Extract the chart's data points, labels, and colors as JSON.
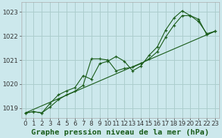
{
  "title": "Graphe pression niveau de la mer (hPa)",
  "bg_color": "#cce8ec",
  "grid_color": "#aacccc",
  "line_color": "#1a5c1a",
  "xlim": [
    -0.5,
    23.5
  ],
  "ylim": [
    1018.6,
    1023.4
  ],
  "yticks": [
    1019,
    1020,
    1021,
    1022,
    1023
  ],
  "xticks": [
    0,
    1,
    2,
    3,
    4,
    5,
    6,
    7,
    8,
    9,
    10,
    11,
    12,
    13,
    14,
    15,
    16,
    17,
    18,
    19,
    20,
    21,
    22,
    23
  ],
  "series1_x": [
    0,
    1,
    2,
    3,
    4,
    5,
    6,
    7,
    8,
    9,
    10,
    11,
    12,
    13,
    14,
    15,
    16,
    17,
    18,
    19,
    20,
    21,
    22,
    23
  ],
  "series1_y": [
    1018.8,
    1018.85,
    1018.8,
    1019.05,
    1019.35,
    1019.55,
    1019.7,
    1019.95,
    1021.05,
    1021.05,
    1021.0,
    1020.55,
    1020.65,
    1020.7,
    1020.85,
    1021.05,
    1021.35,
    1021.95,
    1022.45,
    1022.85,
    1022.85,
    1022.7,
    1022.05,
    1022.2
  ],
  "series2_x": [
    0,
    1,
    2,
    3,
    4,
    5,
    6,
    7,
    8,
    9,
    10,
    11,
    12,
    13,
    14,
    15,
    16,
    17,
    18,
    19,
    20,
    21,
    22,
    23
  ],
  "series2_y": [
    1018.8,
    1018.85,
    1018.8,
    1019.2,
    1019.55,
    1019.72,
    1019.85,
    1020.35,
    1020.2,
    1020.85,
    1020.95,
    1021.15,
    1020.95,
    1020.55,
    1020.75,
    1021.2,
    1021.55,
    1022.25,
    1022.75,
    1023.05,
    1022.85,
    1022.6,
    1022.1,
    1022.2
  ],
  "series3_x": [
    0,
    23
  ],
  "series3_y": [
    1018.8,
    1022.2
  ],
  "tick_fontsize": 6.5,
  "label_fontsize": 8
}
